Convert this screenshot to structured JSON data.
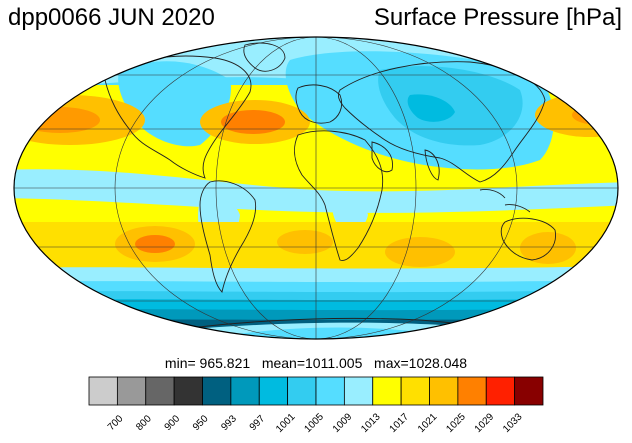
{
  "header": {
    "title_left": "dpp0066 JUN 2020",
    "title_right": "Surface Pressure [hPa]"
  },
  "stats": {
    "text": "min= 965.821   mean=1011.005   max=1028.048",
    "min": 965.821,
    "mean": 1011.005,
    "max": 1028.048
  },
  "map": {
    "projection": "mollweide",
    "variable": "surface-pressure",
    "central_longitude": 0,
    "graticule_latitudes": [
      -60,
      -30,
      0,
      30,
      60
    ],
    "graticule_longitudes": [
      -120,
      -60,
      0,
      60,
      120
    ],
    "coastlines": true
  },
  "colorbar": {
    "ticks": [
      "700",
      "800",
      "900",
      "950",
      "993",
      "997",
      "1001",
      "1005",
      "1009",
      "1013",
      "1017",
      "1021",
      "1025",
      "1029",
      "1033"
    ],
    "colors": [
      "#cccccc",
      "#999999",
      "#666666",
      "#333333",
      "#006080",
      "#0099bb",
      "#00bbe0",
      "#33ccf0",
      "#55ddff",
      "#99eeff",
      "#ffff00",
      "#ffe000",
      "#ffc000",
      "#ff8000",
      "#ff2000",
      "#880000"
    ]
  }
}
